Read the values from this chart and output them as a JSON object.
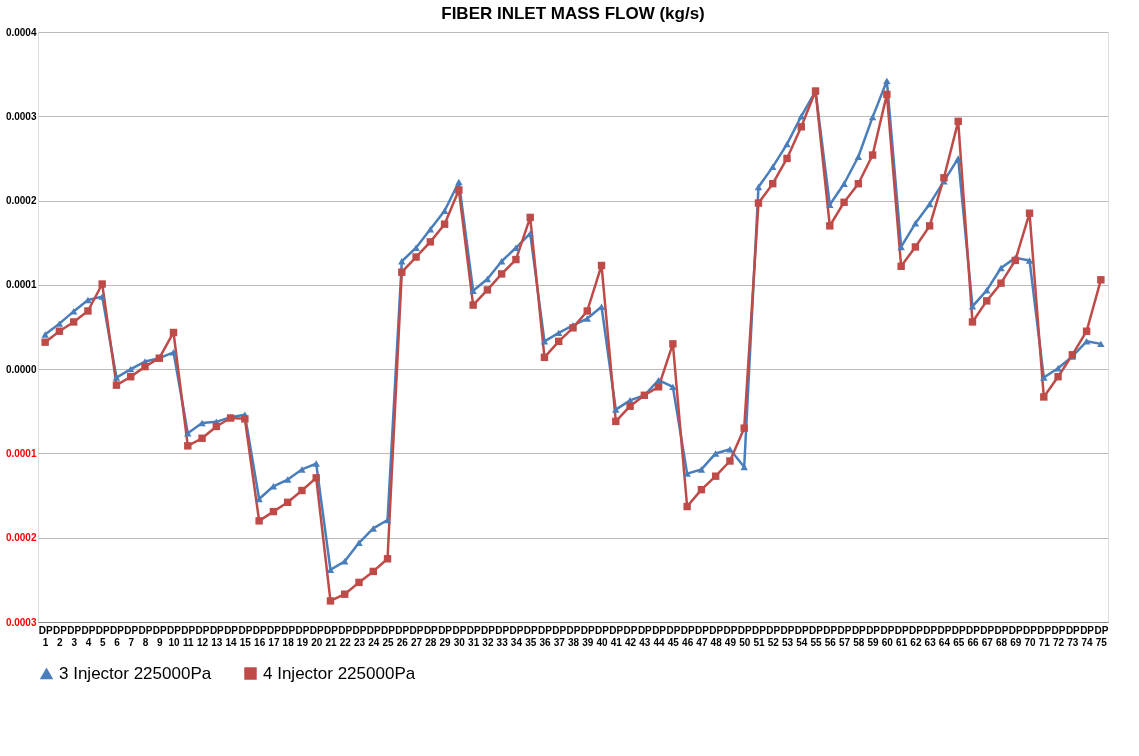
{
  "chart_data": {
    "type": "line",
    "title": "FIBER INLET MASS FLOW (kg/s)",
    "categories": [
      "DP 1",
      "DP 2",
      "DP 3",
      "DP 4",
      "DP 5",
      "DP 6",
      "DP 7",
      "DP 8",
      "DP 9",
      "DP 10",
      "DP 11",
      "DP 12",
      "DP 13",
      "DP 14",
      "DP 15",
      "DP 16",
      "DP 17",
      "DP 18",
      "DP 19",
      "DP 20",
      "DP 21",
      "DP 22",
      "DP 23",
      "DP 24",
      "DP 25",
      "DP 26",
      "DP 27",
      "DP 28",
      "DP 29",
      "DP 30",
      "DP 31",
      "DP 32",
      "DP 33",
      "DP 34",
      "DP 35",
      "DP 36",
      "DP 37",
      "DP 38",
      "DP 39",
      "DP 40",
      "DP 41",
      "DP 42",
      "DP 43",
      "DP 44",
      "DP 45",
      "DP 46",
      "DP 47",
      "DP 48",
      "DP 49",
      "DP 50",
      "DP 51",
      "DP 52",
      "DP 53",
      "DP 54",
      "DP 55",
      "DP 56",
      "DP 57",
      "DP 58",
      "DP 59",
      "DP 60",
      "DP 61",
      "DP 62",
      "DP 63",
      "DP 64",
      "DP 65",
      "DP 66",
      "DP 67",
      "DP 68",
      "DP 69",
      "DP 70",
      "DP 71",
      "DP 72",
      "DP 73",
      "DP 74",
      "DP 75"
    ],
    "series": [
      {
        "name": "3 Injector 225000Pa",
        "color": "#4a7ebb",
        "marker": "triangle",
        "values": [
          4.1e-05,
          5.4e-05,
          6.85e-05,
          8.2e-05,
          8.6e-05,
          -1e-05,
          0.0,
          9e-06,
          1.3e-05,
          2e-05,
          -7.6e-05,
          -6.4e-05,
          -6.25e-05,
          -5.7e-05,
          -5.4e-05,
          -0.000154,
          -0.000139,
          -0.000131,
          -0.000119,
          -0.000112,
          -0.000238,
          -0.000228,
          -0.000206,
          -0.000189,
          -0.000179,
          0.000128,
          0.000144,
          0.000166,
          0.000188,
          0.000222,
          9.3e-05,
          0.000107,
          0.000128,
          0.000144,
          0.000161,
          3.3e-05,
          4.3e-05,
          5.2e-05,
          6e-05,
          7.4e-05,
          -4.8e-05,
          -3.7e-05,
          -3.1e-05,
          -1.3e-05,
          -2.1e-05,
          -0.000124,
          -0.000119,
          -0.0001,
          -9.5e-05,
          -0.000116,
          0.000216,
          0.00024,
          0.000267,
          0.0003,
          0.00033,
          0.000195,
          0.00022,
          0.000252,
          0.000299,
          0.000342,
          0.000145,
          0.000173,
          0.000196,
          0.000223,
          0.00025,
          7.45e-05,
          9.35e-05,
          0.00012,
          0.000132,
          0.000129,
          -1e-05,
          1e-06,
          1.5e-05,
          3.3e-05,
          3e-05
        ]
      },
      {
        "name": "4 Injector 225000Pa",
        "color": "#be4b48",
        "marker": "square",
        "values": [
          3.2e-05,
          4.5e-05,
          5.6e-05,
          6.9e-05,
          0.000101,
          -1.9e-05,
          -9e-06,
          3e-06,
          1.3e-05,
          4.35e-05,
          -9.1e-05,
          -8.2e-05,
          -6.8e-05,
          -5.8e-05,
          -5.9e-05,
          -0.00018,
          -0.000169,
          -0.000158,
          -0.000144,
          -0.000129,
          -0.000275,
          -0.000267,
          -0.000253,
          -0.00024,
          -0.000225,
          0.000115,
          0.000133,
          0.000151,
          0.000172,
          0.0002125,
          7.6e-05,
          9.4e-05,
          0.000113,
          0.00013,
          0.00018,
          1.4e-05,
          3.3e-05,
          4.9e-05,
          6.9e-05,
          0.000123,
          -6.2e-05,
          -4.4e-05,
          -3.1e-05,
          -2.1e-05,
          3e-05,
          -0.000163,
          -0.000143,
          -0.000127,
          -0.000109,
          -7e-05,
          0.000197,
          0.00022,
          0.00025,
          0.0002875,
          0.00033,
          0.00017,
          0.000198,
          0.00022,
          0.000254,
          0.000326,
          0.000122,
          0.000145,
          0.00017,
          0.000227,
          0.000294,
          5.6e-05,
          8.1e-05,
          0.000102,
          0.000129,
          0.000185,
          -3.3e-05,
          -9e-06,
          1.7e-05,
          4.5e-05,
          0.000106
        ]
      }
    ],
    "ylim": [
      -0.0003,
      0.0004
    ],
    "yticks": [
      {
        "value": -0.0003,
        "label": "0.0003"
      },
      {
        "value": -0.0002,
        "label": "0.0002"
      },
      {
        "value": -0.0001,
        "label": "0.0001"
      },
      {
        "value": 0,
        "label": "0.0000"
      },
      0.0001,
      0.0002,
      0.0003,
      0.0004
    ],
    "grid": "y",
    "legend": "bottom",
    "line_style": "solid"
  }
}
